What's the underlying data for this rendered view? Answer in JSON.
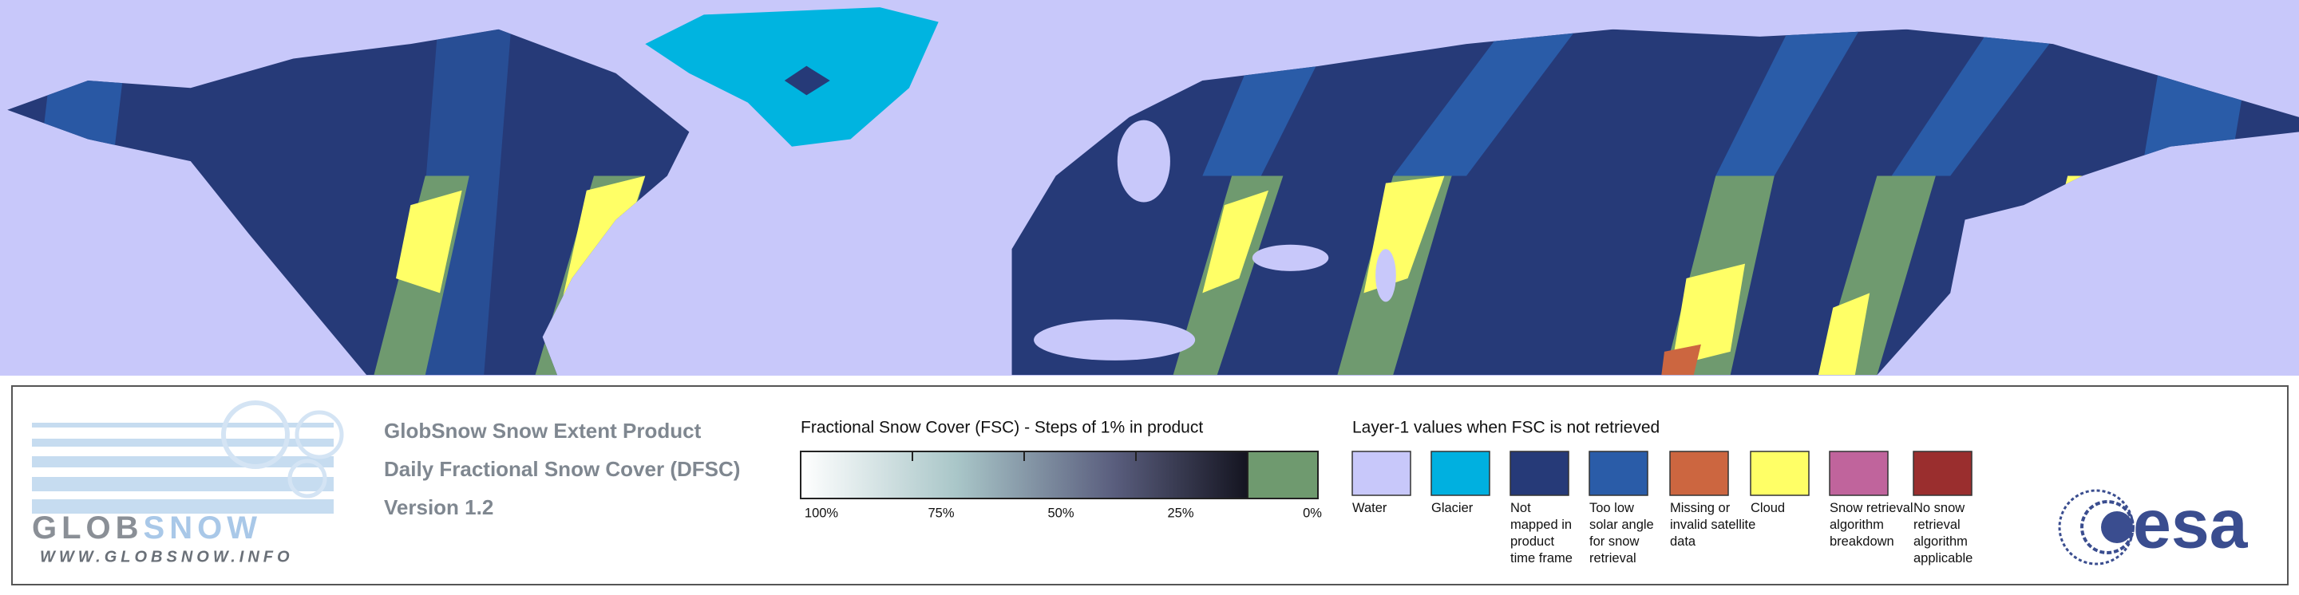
{
  "logo": {
    "word": [
      "GLOB",
      "SNOW"
    ],
    "url": "WWW.GLOBSNOW.INFO"
  },
  "product": {
    "lines": [
      "GlobSnow Snow Extent Product",
      "Daily Fractional Snow Cover (DFSC)",
      "Version 1.2"
    ]
  },
  "fsc_legend": {
    "title": "Fractional Snow Cover (FSC) - Steps of 1% in product",
    "ticks": [
      "100%",
      "75%",
      "50%",
      "25%",
      "0%"
    ]
  },
  "layer_legend": {
    "title": "Layer-1 values when FSC is not retrieved",
    "items": [
      {
        "label": [
          "Water"
        ],
        "color": "#c8c8fa"
      },
      {
        "label": [
          "Glacier"
        ],
        "color": "#00b0e0"
      },
      {
        "label": [
          "Not",
          "mapped in",
          "product",
          "time frame"
        ],
        "color": "#263a78"
      },
      {
        "label": [
          "Too low",
          "solar angle",
          "for snow",
          "retrieval"
        ],
        "color": "#2a5ca8"
      },
      {
        "label": [
          "Missing or",
          "invalid satellite",
          "data"
        ],
        "color": "#cc6640"
      },
      {
        "label": [
          "Cloud"
        ],
        "color": "#ffff66"
      },
      {
        "label": [
          "Snow retrieval",
          "algorithm",
          "breakdown"
        ],
        "color": "#c0649c"
      },
      {
        "label": [
          "No snow",
          "retrieval",
          "algorithm",
          "applicable"
        ],
        "color": "#9a2e2e"
      }
    ]
  },
  "esa": {
    "text": "esa"
  }
}
